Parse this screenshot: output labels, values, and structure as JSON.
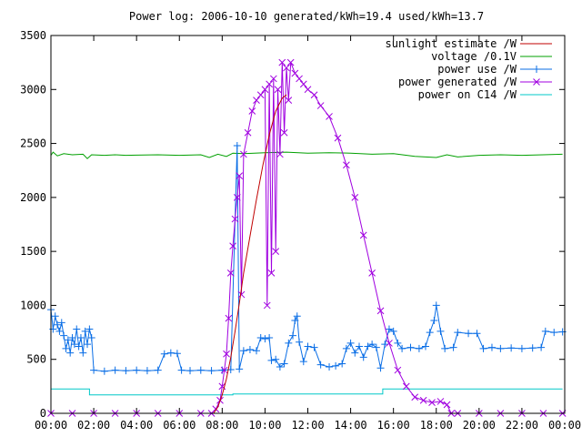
{
  "chart_data": {
    "type": "line",
    "title": "Power log: 2006-10-10 generated/kWh=19.4 used/kWh=13.7",
    "xlabel": "",
    "ylabel": "",
    "xlim": [
      0,
      24
    ],
    "ylim": [
      0,
      3500
    ],
    "grid": false,
    "legend": "top-right",
    "x_ticks": [
      "00:00",
      "02:00",
      "04:00",
      "06:00",
      "08:00",
      "10:00",
      "12:00",
      "14:00",
      "16:00",
      "18:00",
      "20:00",
      "22:00",
      "00:00"
    ],
    "x_tick_values": [
      0,
      2,
      4,
      6,
      8,
      10,
      12,
      14,
      16,
      18,
      20,
      22,
      24
    ],
    "y_ticks": [
      "0",
      "500",
      "1000",
      "1500",
      "2000",
      "2500",
      "3000",
      "3500"
    ],
    "y_tick_values": [
      0,
      500,
      1000,
      1500,
      2000,
      2500,
      3000,
      3500
    ],
    "series": [
      {
        "name": "sunlight estimate /W",
        "color": "#c00000",
        "marker": "none",
        "points": [
          [
            7.6,
            0
          ],
          [
            7.8,
            60
          ],
          [
            8.0,
            170
          ],
          [
            8.2,
            320
          ],
          [
            8.4,
            520
          ],
          [
            8.6,
            760
          ],
          [
            8.8,
            1020
          ],
          [
            9.0,
            1300
          ],
          [
            9.3,
            1640
          ],
          [
            9.6,
            1980
          ],
          [
            9.9,
            2300
          ],
          [
            10.2,
            2580
          ],
          [
            10.5,
            2800
          ],
          [
            10.8,
            2920
          ],
          [
            11.0,
            2950
          ]
        ]
      },
      {
        "name": "voltage /0.1V",
        "color": "#00a000",
        "marker": "none",
        "points": [
          [
            0,
            2390
          ],
          [
            0.1,
            2420
          ],
          [
            0.3,
            2385
          ],
          [
            0.6,
            2405
          ],
          [
            1.0,
            2395
          ],
          [
            1.5,
            2400
          ],
          [
            1.7,
            2360
          ],
          [
            1.9,
            2395
          ],
          [
            2.5,
            2390
          ],
          [
            3.0,
            2395
          ],
          [
            3.5,
            2390
          ],
          [
            4.0,
            2392
          ],
          [
            5.0,
            2395
          ],
          [
            6.0,
            2390
          ],
          [
            7.0,
            2395
          ],
          [
            7.4,
            2370
          ],
          [
            7.8,
            2400
          ],
          [
            8.2,
            2380
          ],
          [
            8.5,
            2410
          ],
          [
            9.0,
            2405
          ],
          [
            10.0,
            2415
          ],
          [
            11.0,
            2420
          ],
          [
            12.0,
            2410
          ],
          [
            13.0,
            2415
          ],
          [
            14.0,
            2410
          ],
          [
            15.0,
            2400
          ],
          [
            16.0,
            2405
          ],
          [
            17.0,
            2380
          ],
          [
            18.0,
            2370
          ],
          [
            18.5,
            2395
          ],
          [
            19.0,
            2375
          ],
          [
            20.0,
            2390
          ],
          [
            21.0,
            2395
          ],
          [
            22.0,
            2390
          ],
          [
            23.0,
            2395
          ],
          [
            23.9,
            2400
          ]
        ]
      },
      {
        "name": "power use /W",
        "color": "#0a6ee6",
        "marker": "plus",
        "points": [
          [
            0.0,
            960
          ],
          [
            0.1,
            780
          ],
          [
            0.2,
            900
          ],
          [
            0.3,
            820
          ],
          [
            0.4,
            760
          ],
          [
            0.5,
            840
          ],
          [
            0.6,
            720
          ],
          [
            0.7,
            600
          ],
          [
            0.8,
            680
          ],
          [
            0.9,
            560
          ],
          [
            1.0,
            700
          ],
          [
            1.1,
            640
          ],
          [
            1.2,
            780
          ],
          [
            1.3,
            620
          ],
          [
            1.4,
            700
          ],
          [
            1.5,
            560
          ],
          [
            1.6,
            760
          ],
          [
            1.7,
            640
          ],
          [
            1.8,
            780
          ],
          [
            1.9,
            700
          ],
          [
            2.0,
            400
          ],
          [
            2.5,
            390
          ],
          [
            3.0,
            400
          ],
          [
            3.5,
            395
          ],
          [
            4.0,
            400
          ],
          [
            4.5,
            395
          ],
          [
            5.0,
            400
          ],
          [
            5.3,
            550
          ],
          [
            5.6,
            560
          ],
          [
            5.9,
            555
          ],
          [
            6.1,
            400
          ],
          [
            6.5,
            395
          ],
          [
            7.0,
            400
          ],
          [
            7.5,
            395
          ],
          [
            8.0,
            400
          ],
          [
            8.4,
            405
          ],
          [
            8.7,
            2480
          ],
          [
            8.8,
            410
          ],
          [
            9.0,
            580
          ],
          [
            9.3,
            590
          ],
          [
            9.6,
            580
          ],
          [
            9.8,
            700
          ],
          [
            10.0,
            690
          ],
          [
            10.2,
            700
          ],
          [
            10.3,
            490
          ],
          [
            10.5,
            500
          ],
          [
            10.7,
            430
          ],
          [
            10.9,
            460
          ],
          [
            11.1,
            650
          ],
          [
            11.3,
            720
          ],
          [
            11.4,
            860
          ],
          [
            11.5,
            900
          ],
          [
            11.6,
            660
          ],
          [
            11.8,
            480
          ],
          [
            12.0,
            620
          ],
          [
            12.3,
            610
          ],
          [
            12.6,
            450
          ],
          [
            13.0,
            430
          ],
          [
            13.3,
            440
          ],
          [
            13.6,
            460
          ],
          [
            13.8,
            600
          ],
          [
            14.0,
            650
          ],
          [
            14.2,
            560
          ],
          [
            14.4,
            620
          ],
          [
            14.6,
            520
          ],
          [
            14.8,
            620
          ],
          [
            15.0,
            640
          ],
          [
            15.2,
            610
          ],
          [
            15.4,
            420
          ],
          [
            15.6,
            640
          ],
          [
            15.8,
            780
          ],
          [
            16.0,
            760
          ],
          [
            16.2,
            650
          ],
          [
            16.4,
            600
          ],
          [
            16.8,
            610
          ],
          [
            17.2,
            600
          ],
          [
            17.5,
            620
          ],
          [
            17.7,
            750
          ],
          [
            17.9,
            860
          ],
          [
            18.0,
            1000
          ],
          [
            18.2,
            760
          ],
          [
            18.4,
            600
          ],
          [
            18.8,
            610
          ],
          [
            19.0,
            750
          ],
          [
            19.5,
            740
          ],
          [
            19.9,
            740
          ],
          [
            20.2,
            600
          ],
          [
            20.6,
            610
          ],
          [
            21.0,
            600
          ],
          [
            21.5,
            605
          ],
          [
            22.0,
            600
          ],
          [
            22.5,
            605
          ],
          [
            22.9,
            610
          ],
          [
            23.1,
            760
          ],
          [
            23.5,
            750
          ],
          [
            23.9,
            755
          ]
        ]
      },
      {
        "name": "power generated /W",
        "color": "#a000e0",
        "marker": "cross",
        "points": [
          [
            0.0,
            0
          ],
          [
            1.0,
            0
          ],
          [
            2.0,
            0
          ],
          [
            3.0,
            0
          ],
          [
            4.0,
            0
          ],
          [
            5.0,
            0
          ],
          [
            6.0,
            0
          ],
          [
            7.0,
            0
          ],
          [
            7.5,
            0
          ],
          [
            7.7,
            40
          ],
          [
            7.9,
            120
          ],
          [
            8.0,
            250
          ],
          [
            8.1,
            400
          ],
          [
            8.2,
            550
          ],
          [
            8.3,
            880
          ],
          [
            8.4,
            1300
          ],
          [
            8.5,
            1550
          ],
          [
            8.6,
            1800
          ],
          [
            8.7,
            2000
          ],
          [
            8.8,
            2200
          ],
          [
            8.9,
            1100
          ],
          [
            9.0,
            2400
          ],
          [
            9.2,
            2600
          ],
          [
            9.4,
            2800
          ],
          [
            9.6,
            2900
          ],
          [
            9.8,
            2950
          ],
          [
            10.0,
            3000
          ],
          [
            10.1,
            1000
          ],
          [
            10.2,
            3050
          ],
          [
            10.3,
            1300
          ],
          [
            10.4,
            3100
          ],
          [
            10.5,
            1500
          ],
          [
            10.6,
            3000
          ],
          [
            10.7,
            2400
          ],
          [
            10.8,
            3250
          ],
          [
            10.9,
            2600
          ],
          [
            11.0,
            3200
          ],
          [
            11.1,
            2900
          ],
          [
            11.2,
            3250
          ],
          [
            11.4,
            3150
          ],
          [
            11.6,
            3100
          ],
          [
            11.8,
            3050
          ],
          [
            12.0,
            3000
          ],
          [
            12.3,
            2950
          ],
          [
            12.6,
            2850
          ],
          [
            13.0,
            2750
          ],
          [
            13.4,
            2550
          ],
          [
            13.8,
            2300
          ],
          [
            14.2,
            2000
          ],
          [
            14.6,
            1650
          ],
          [
            15.0,
            1300
          ],
          [
            15.4,
            950
          ],
          [
            15.8,
            650
          ],
          [
            16.2,
            400
          ],
          [
            16.6,
            250
          ],
          [
            17.0,
            150
          ],
          [
            17.4,
            120
          ],
          [
            17.8,
            100
          ],
          [
            18.2,
            110
          ],
          [
            18.5,
            80
          ],
          [
            18.7,
            0
          ],
          [
            19.0,
            0
          ],
          [
            20.0,
            0
          ],
          [
            21.0,
            0
          ],
          [
            22.0,
            0
          ],
          [
            23.0,
            0
          ],
          [
            23.9,
            0
          ]
        ]
      },
      {
        "name": "power on C14 /W",
        "color": "#00c8c8",
        "marker": "none",
        "points": [
          [
            0.0,
            225
          ],
          [
            1.8,
            225
          ],
          [
            1.8,
            170
          ],
          [
            8.5,
            170
          ],
          [
            8.5,
            180
          ],
          [
            15.5,
            180
          ],
          [
            15.5,
            225
          ],
          [
            23.9,
            225
          ]
        ]
      }
    ]
  }
}
